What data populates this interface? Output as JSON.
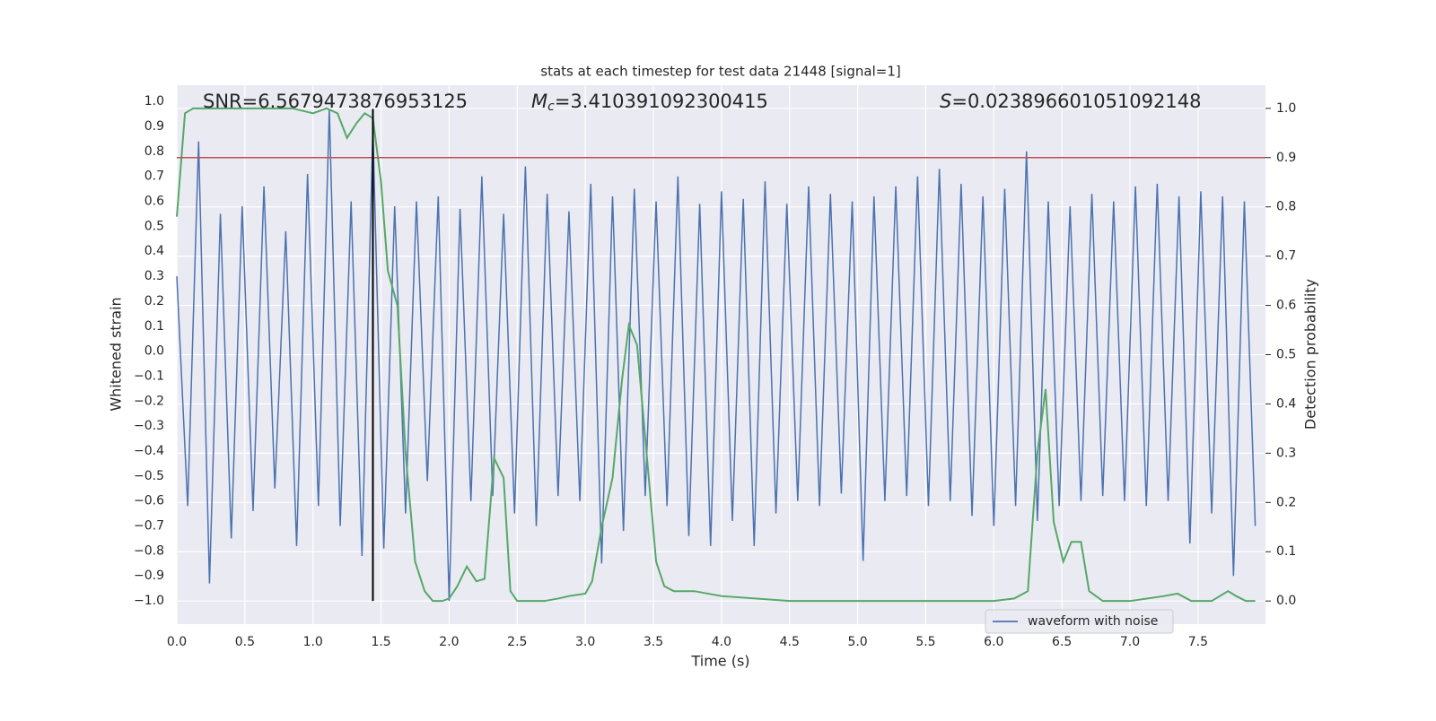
{
  "chart_data": {
    "type": "line",
    "title": "stats at each timestep for test data 21448 [signal=1]",
    "xlabel": "Time (s)",
    "ylabel": "Whitened strain",
    "y2label": "Detection probability",
    "annotations": {
      "snr": {
        "text": "SNR=6.5679473876953125"
      },
      "mc": {
        "symbol": "M",
        "subscript": "c",
        "text": "=3.410391092300415"
      },
      "s": {
        "symbol": "S",
        "text": "=0.023896601051092148"
      }
    },
    "xlim": [
      0,
      7.995
    ],
    "ylim": [
      -1.093,
      1.065
    ],
    "y2lim": [
      -0.047,
      1.047
    ],
    "grid": true,
    "legend": "lower right",
    "xticks": [
      {
        "value": 0,
        "label": "0.0"
      },
      {
        "value": 0.5,
        "label": "0.5"
      },
      {
        "value": 1,
        "label": "1.0"
      },
      {
        "value": 1.5,
        "label": "1.5"
      },
      {
        "value": 2,
        "label": "2.0"
      },
      {
        "value": 2.5,
        "label": "2.5"
      },
      {
        "value": 3,
        "label": "3.0"
      },
      {
        "value": 3.5,
        "label": "3.5"
      },
      {
        "value": 4,
        "label": "4.0"
      },
      {
        "value": 4.5,
        "label": "4.5"
      },
      {
        "value": 5,
        "label": "5.0"
      },
      {
        "value": 5.5,
        "label": "5.5"
      },
      {
        "value": 6,
        "label": "6.0"
      },
      {
        "value": 6.5,
        "label": "6.5"
      },
      {
        "value": 7,
        "label": "7.0"
      },
      {
        "value": 7.5,
        "label": "7.5"
      }
    ],
    "yticks": [
      {
        "value": 1,
        "label": "1.0"
      },
      {
        "value": 0.9,
        "label": "0.9"
      },
      {
        "value": 0.8,
        "label": "0.8"
      },
      {
        "value": 0.7,
        "label": "0.7"
      },
      {
        "value": 0.6,
        "label": "0.6"
      },
      {
        "value": 0.5,
        "label": "0.5"
      },
      {
        "value": 0.4,
        "label": "0.4"
      },
      {
        "value": 0.3,
        "label": "0.3"
      },
      {
        "value": 0.2,
        "label": "0.2"
      },
      {
        "value": 0.1,
        "label": "0.1"
      },
      {
        "value": 0,
        "label": "0.0"
      },
      {
        "value": -0.1,
        "label": "−0.1"
      },
      {
        "value": -0.2,
        "label": "−0.2"
      },
      {
        "value": -0.3,
        "label": "−0.3"
      },
      {
        "value": -0.4,
        "label": "−0.4"
      },
      {
        "value": -0.5,
        "label": "−0.5"
      },
      {
        "value": -0.6,
        "label": "−0.6"
      },
      {
        "value": -0.7,
        "label": "−0.7"
      },
      {
        "value": -0.8,
        "label": "−0.8"
      },
      {
        "value": -0.9,
        "label": "−0.9"
      },
      {
        "value": -1,
        "label": "−1.0"
      }
    ],
    "y2ticks": [
      {
        "value": 0,
        "label": "0.0"
      },
      {
        "value": 0.1,
        "label": "0.1"
      },
      {
        "value": 0.2,
        "label": "0.2"
      },
      {
        "value": 0.3,
        "label": "0.3"
      },
      {
        "value": 0.4,
        "label": "0.4"
      },
      {
        "value": 0.5,
        "label": "0.5"
      },
      {
        "value": 0.6,
        "label": "0.6"
      },
      {
        "value": 0.7,
        "label": "0.7"
      },
      {
        "value": 0.8,
        "label": "0.8"
      },
      {
        "value": 0.9,
        "label": "0.9"
      },
      {
        "value": 1,
        "label": "1.0"
      }
    ],
    "series": [
      {
        "name": "waveform with noise",
        "color": "#4c72b0",
        "x": [
          0,
          0.08,
          0.16,
          0.24,
          0.32,
          0.4,
          0.48,
          0.56,
          0.64,
          0.72,
          0.8,
          0.88,
          0.96,
          1.04,
          1.12,
          1.2,
          1.28,
          1.36,
          1.44,
          1.52,
          1.6,
          1.68,
          1.76,
          1.84,
          1.92,
          2,
          2.08,
          2.16,
          2.24,
          2.32,
          2.4,
          2.48,
          2.56,
          2.64,
          2.72,
          2.8,
          2.88,
          2.96,
          3.04,
          3.12,
          3.2,
          3.28,
          3.36,
          3.44,
          3.52,
          3.6,
          3.68,
          3.76,
          3.84,
          3.92,
          4,
          4.08,
          4.16,
          4.24,
          4.32,
          4.4,
          4.48,
          4.56,
          4.64,
          4.72,
          4.8,
          4.88,
          4.96,
          5.04,
          5.12,
          5.2,
          5.28,
          5.36,
          5.44,
          5.52,
          5.6,
          5.68,
          5.76,
          5.84,
          5.92,
          6,
          6.08,
          6.16,
          6.24,
          6.32,
          6.4,
          6.48,
          6.56,
          6.64,
          6.72,
          6.8,
          6.88,
          6.96,
          7.04,
          7.12,
          7.2,
          7.28,
          7.36,
          7.44,
          7.52,
          7.6,
          7.68,
          7.76,
          7.84,
          7.92
        ],
        "values": [
          0.3,
          -0.62,
          0.84,
          -0.93,
          0.55,
          -0.75,
          0.58,
          -0.64,
          0.66,
          -0.55,
          0.48,
          -0.78,
          0.71,
          -0.62,
          0.97,
          -0.7,
          0.6,
          -0.82,
          0.89,
          -0.79,
          0.58,
          -0.65,
          0.6,
          -0.52,
          0.62,
          -1.0,
          0.57,
          -0.6,
          0.7,
          -0.58,
          0.55,
          -0.65,
          0.74,
          -0.7,
          0.63,
          -0.58,
          0.56,
          -0.6,
          0.67,
          -0.85,
          0.62,
          -0.72,
          0.65,
          -0.58,
          0.6,
          -0.62,
          0.7,
          -0.74,
          0.59,
          -0.78,
          0.64,
          -0.68,
          0.61,
          -0.78,
          0.68,
          -0.65,
          0.59,
          -0.6,
          0.66,
          -0.62,
          0.63,
          -0.57,
          0.6,
          -0.84,
          0.62,
          -0.6,
          0.66,
          -0.58,
          0.7,
          -0.62,
          0.73,
          -0.6,
          0.67,
          -0.66,
          0.62,
          -0.7,
          0.65,
          -0.62,
          0.8,
          -0.68,
          0.6,
          -0.62,
          0.58,
          -0.6,
          0.63,
          -0.58,
          0.6,
          -0.6,
          0.66,
          -0.62,
          0.67,
          -0.6,
          0.62,
          -0.77,
          0.64,
          -0.65,
          0.62,
          -0.9,
          0.6,
          -0.7
        ]
      },
      {
        "axis": "y2",
        "color": "#55a868",
        "x": [
          0,
          0.06,
          0.12,
          0.2,
          0.4,
          0.6,
          0.85,
          1,
          1.1,
          1.18,
          1.25,
          1.32,
          1.38,
          1.44,
          1.5,
          1.55,
          1.62,
          1.68,
          1.75,
          1.82,
          1.88,
          1.95,
          2,
          2.06,
          2.13,
          2.2,
          2.26,
          2.33,
          2.4,
          2.45,
          2.5,
          2.6,
          2.7,
          2.8,
          2.88,
          3,
          3.05,
          3.12,
          3.2,
          3.27,
          3.32,
          3.38,
          3.45,
          3.52,
          3.58,
          3.65,
          3.8,
          4,
          4.5,
          5,
          5.5,
          6,
          6.15,
          6.25,
          6.32,
          6.38,
          6.44,
          6.51,
          6.57,
          6.64,
          6.7,
          6.8,
          7,
          7.25,
          7.35,
          7.45,
          7.6,
          7.72,
          7.78,
          7.85,
          7.92
        ],
        "values": [
          0.78,
          0.99,
          1.0,
          1.0,
          1.0,
          1.0,
          1.0,
          0.99,
          1.0,
          0.99,
          0.94,
          0.97,
          0.99,
          0.98,
          0.85,
          0.67,
          0.6,
          0.3,
          0.08,
          0.02,
          0.0,
          0.0,
          0.005,
          0.03,
          0.07,
          0.04,
          0.045,
          0.29,
          0.25,
          0.02,
          0.0,
          0.0,
          0.0,
          0.005,
          0.01,
          0.015,
          0.04,
          0.15,
          0.25,
          0.45,
          0.56,
          0.52,
          0.3,
          0.08,
          0.03,
          0.02,
          0.02,
          0.01,
          0.0,
          0.0,
          0.0,
          0.0,
          0.005,
          0.02,
          0.3,
          0.43,
          0.16,
          0.08,
          0.12,
          0.12,
          0.02,
          0.0,
          0.0,
          0.01,
          0.015,
          0.0,
          0.0,
          0.02,
          0.01,
          0.0,
          0.0
        ]
      }
    ],
    "hline": {
      "value": 0.9,
      "axis": "y2",
      "color": "#c44e52"
    },
    "vline": {
      "x": 1.44,
      "y": [
        -1.0,
        0.97
      ],
      "color": "#000000"
    }
  }
}
